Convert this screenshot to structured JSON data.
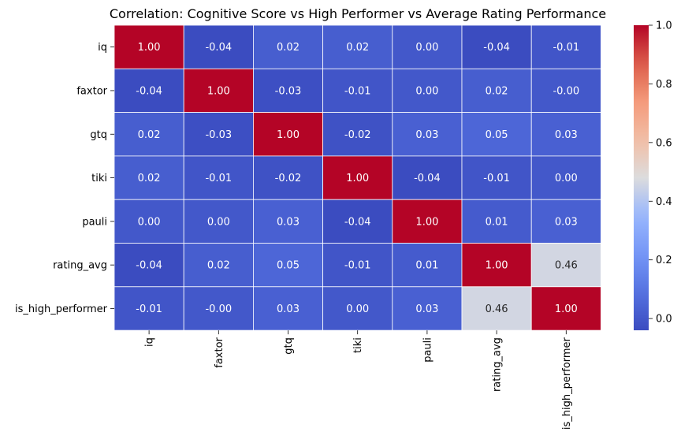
{
  "chart_data": {
    "type": "heatmap",
    "title": "Correlation: Cognitive Score vs High Performer vs Average Rating Performance",
    "rows": [
      "iq",
      "faxtor",
      "gtq",
      "tiki",
      "pauli",
      "rating_avg",
      "is_high_performer"
    ],
    "columns": [
      "iq",
      "faxtor",
      "gtq",
      "tiki",
      "pauli",
      "rating_avg",
      "is_high_performer"
    ],
    "values": [
      [
        1.0,
        -0.04,
        0.02,
        0.02,
        0.0,
        -0.04,
        -0.01
      ],
      [
        -0.04,
        1.0,
        -0.03,
        -0.01,
        0.0,
        0.02,
        -0.0
      ],
      [
        0.02,
        -0.03,
        1.0,
        -0.02,
        0.03,
        0.05,
        0.03
      ],
      [
        0.02,
        -0.01,
        -0.02,
        1.0,
        -0.04,
        -0.01,
        0.0
      ],
      [
        0.0,
        0.0,
        0.03,
        -0.04,
        1.0,
        0.01,
        0.03
      ],
      [
        -0.04,
        0.02,
        0.05,
        -0.01,
        0.01,
        1.0,
        0.46
      ],
      [
        -0.01,
        -0.0,
        0.03,
        0.0,
        0.03,
        0.46,
        1.0
      ]
    ],
    "cell_labels": [
      [
        "1.00",
        "-0.04",
        "0.02",
        "0.02",
        "0.00",
        "-0.04",
        "-0.01"
      ],
      [
        "-0.04",
        "1.00",
        "-0.03",
        "-0.01",
        "0.00",
        "0.02",
        "-0.00"
      ],
      [
        "0.02",
        "-0.03",
        "1.00",
        "-0.02",
        "0.03",
        "0.05",
        "0.03"
      ],
      [
        "0.02",
        "-0.01",
        "-0.02",
        "1.00",
        "-0.04",
        "-0.01",
        "0.00"
      ],
      [
        "0.00",
        "0.00",
        "0.03",
        "-0.04",
        "1.00",
        "0.01",
        "0.03"
      ],
      [
        "-0.04",
        "0.02",
        "0.05",
        "-0.01",
        "0.01",
        "1.00",
        "0.46"
      ],
      [
        "-0.01",
        "-0.00",
        "0.03",
        "0.00",
        "0.03",
        "0.46",
        "1.00"
      ]
    ],
    "colormap": "coolwarm",
    "vmin": -0.04,
    "vmax": 1.0,
    "colorbar_ticks": [
      0.0,
      0.2,
      0.4,
      0.6,
      0.8,
      1.0
    ],
    "colorbar_tick_labels": [
      "0.0",
      "0.2",
      "0.4",
      "0.6",
      "0.8",
      "1.0"
    ],
    "grid_line_color": "#ffffff",
    "annotation_color_dark_cell": "#ffffff",
    "annotation_color_light_cell": "#262626"
  }
}
